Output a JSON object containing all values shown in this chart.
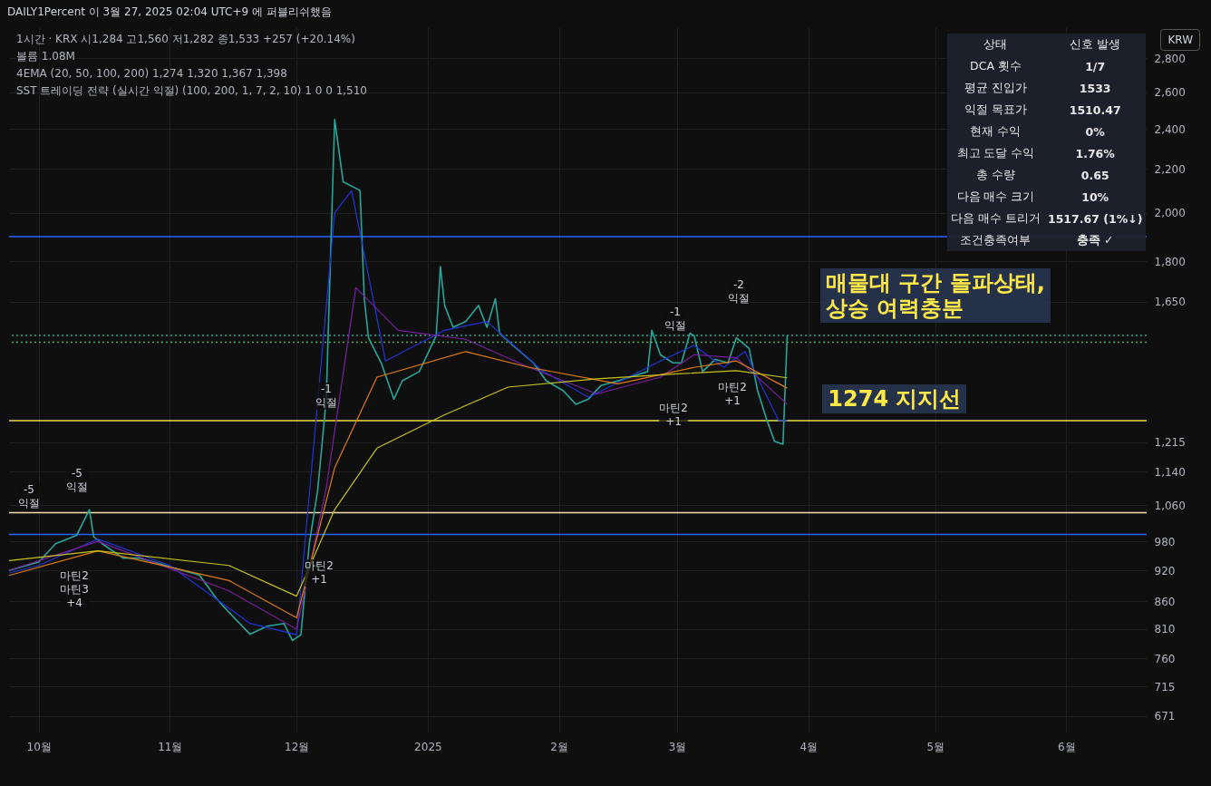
{
  "chart_data": {
    "type": "line",
    "title": "1시간 · KRX 시1,284 고1,560 저1,282 종1,533 +257 (+20.14%)",
    "subtitle": "볼륨 1.08M\n4EMA (20, 50, 100, 200) 1,274 1,320 1,367 1,398\nSST 트레이딩 전략 (실시간 익절) (100, 200, 1, 7, 2, 10) 1 0 0 1,510",
    "ylabel": "KRW",
    "xlim": [
      "2024-09-24",
      "2025-06-20"
    ],
    "xticks": [
      {
        "value": "2024-10-01",
        "label": "10월"
      },
      {
        "value": "2024-11-01",
        "label": "11월"
      },
      {
        "value": "2024-12-01",
        "label": "12월"
      },
      {
        "value": "2025-01-01",
        "label": "2025"
      },
      {
        "value": "2025-02-01",
        "label": "2월"
      },
      {
        "value": "2025-03-01",
        "label": "3월"
      },
      {
        "value": "2025-04-01",
        "label": "4월"
      },
      {
        "value": "2025-05-01",
        "label": "5월"
      },
      {
        "value": "2025-06-01",
        "label": "6월"
      }
    ],
    "log": true,
    "ylim": [
      647,
      2994
    ],
    "yticks": [
      671,
      715,
      760,
      810,
      860,
      920,
      980,
      {
        "value": 1060,
        "label": "1,060"
      },
      {
        "value": 1140,
        "label": "1,140"
      },
      {
        "value": 1215,
        "label": "1,215"
      },
      {
        "value": 1650,
        "label": "1,650"
      },
      {
        "value": 1800,
        "label": "1,800"
      },
      {
        "value": 2000,
        "label": "2,000"
      },
      {
        "value": 2200,
        "label": "2,200"
      },
      {
        "value": 2400,
        "label": "2,400"
      },
      {
        "value": 2600,
        "label": "2,600"
      },
      {
        "value": 2800,
        "label": "2,800"
      }
    ],
    "grid": true,
    "series": [
      {
        "color": "#26a69a",
        "x": [
          "2024-09-24",
          "2024-10-01",
          "2024-10-05",
          "2024-10-10",
          "2024-10-13",
          "2024-10-14",
          "2024-10-16",
          "2024-10-21",
          "2024-10-25",
          "2024-10-31",
          "2024-11-04",
          "2024-11-08",
          "2024-11-12",
          "2024-11-15",
          "2024-11-20",
          "2024-11-24",
          "2024-11-28",
          "2024-11-30",
          "2024-12-02",
          "2024-12-04",
          "2024-12-06",
          "2024-12-08",
          "2024-12-10",
          "2024-12-12",
          "2024-12-16",
          "2024-12-17",
          "2024-12-18",
          "2024-12-21",
          "2024-12-24",
          "2024-12-26",
          "2024-12-30",
          "2025-01-03",
          "2025-01-04",
          "2025-01-05",
          "2025-01-07",
          "2025-01-10",
          "2025-01-13",
          "2025-01-15",
          "2025-01-17",
          "2025-01-18",
          "2025-01-22",
          "2025-01-26",
          "2025-01-29",
          "2025-02-02",
          "2025-02-05",
          "2025-02-08",
          "2025-02-11",
          "2025-02-15",
          "2025-02-19",
          "2025-02-22",
          "2025-02-23",
          "2025-02-25",
          "2025-02-28",
          "2025-03-02",
          "2025-03-04",
          "2025-03-05",
          "2025-03-07",
          "2025-03-10",
          "2025-03-13",
          "2025-03-15",
          "2025-03-18",
          "2025-03-20",
          "2025-03-22",
          "2025-03-24",
          "2025-03-26",
          "2025-03-27"
        ],
        "values": [
          920,
          937,
          975,
          993,
          1050,
          990,
          975,
          945,
          945,
          930,
          920,
          911,
          866,
          840,
          801,
          815,
          820,
          790,
          800,
          975,
          1097,
          1335,
          2450,
          2140,
          2100,
          1660,
          1525,
          1444,
          1335,
          1389,
          1417,
          1532,
          1780,
          1636,
          1560,
          1580,
          1636,
          1560,
          1660,
          1540,
          1490,
          1444,
          1389,
          1360,
          1320,
          1335,
          1375,
          1389,
          1405,
          1417,
          1550,
          1470,
          1444,
          1444,
          1540,
          1532,
          1417,
          1455,
          1444,
          1525,
          1490,
          1360,
          1282,
          1218,
          1210,
          1533
        ]
      },
      {
        "color": "#2035d8",
        "x": [
          "2024-09-24",
          "2024-10-01",
          "2024-10-15",
          "2024-11-01",
          "2024-11-20",
          "2024-12-01",
          "2024-12-10",
          "2024-12-14",
          "2024-12-22",
          "2025-01-05",
          "2025-01-15",
          "2025-01-28",
          "2025-02-08",
          "2025-02-25",
          "2025-03-05",
          "2025-03-12",
          "2025-03-17",
          "2025-03-25",
          "2025-03-27"
        ],
        "values": [
          915,
          930,
          985,
          930,
          820,
          800,
          2000,
          2100,
          1450,
          1550,
          1580,
          1420,
          1340,
          1450,
          1500,
          1430,
          1480,
          1274,
          1274
        ]
      },
      {
        "color": "#7b1fa2",
        "x": [
          "2024-09-24",
          "2024-10-15",
          "2024-11-15",
          "2024-12-01",
          "2024-12-08",
          "2024-12-15",
          "2024-12-25",
          "2025-01-10",
          "2025-01-25",
          "2025-02-10",
          "2025-02-25",
          "2025-03-05",
          "2025-03-15",
          "2025-03-27"
        ],
        "values": [
          920,
          980,
          880,
          810,
          1100,
          1700,
          1550,
          1520,
          1430,
          1350,
          1400,
          1470,
          1460,
          1320
        ]
      },
      {
        "color": "#e07b12",
        "x": [
          "2024-09-24",
          "2024-10-15",
          "2024-11-15",
          "2024-12-01",
          "2024-12-10",
          "2024-12-20",
          "2025-01-10",
          "2025-01-25",
          "2025-02-15",
          "2025-03-05",
          "2025-03-15",
          "2025-03-27"
        ],
        "values": [
          910,
          960,
          900,
          830,
          1150,
          1400,
          1480,
          1430,
          1380,
          1430,
          1450,
          1367
        ]
      },
      {
        "color": "#c9c21a",
        "x": [
          "2024-09-24",
          "2024-10-15",
          "2024-11-15",
          "2024-12-01",
          "2024-12-10",
          "2024-12-20",
          "2025-01-05",
          "2025-01-20",
          "2025-02-10",
          "2025-03-01",
          "2025-03-15",
          "2025-03-27"
        ],
        "values": [
          940,
          960,
          930,
          870,
          1050,
          1200,
          1290,
          1370,
          1395,
          1410,
          1420,
          1398
        ]
      }
    ],
    "ref_lines": [
      {
        "axis": "y",
        "value": 1274,
        "label": "1274 지지선",
        "color": "#e8e04a"
      },
      {
        "axis": "y",
        "value": 1900,
        "color": "#2962ff"
      },
      {
        "axis": "y",
        "value": 995,
        "color": "#2962ff"
      },
      {
        "axis": "y",
        "value": 1043,
        "color": "#f5deb3"
      },
      {
        "axis": "y",
        "value": 1533,
        "color": "#26a69a",
        "line_style": "dotted"
      },
      {
        "axis": "y",
        "value": 1510,
        "color": "#4caf50",
        "line_style": "dotted"
      }
    ],
    "annotations": [
      "DAILY1Percent 이 3월 27, 2025 02:04 UTC+9 에 퍼블리쉬했음",
      "매물대 구간 돌파상태,\n상승 여력충분",
      "상태\t신호 발생",
      "DCA 횟수\t1/7",
      "평균 진입가\t1533",
      "익절 목표가\t1510.47",
      "현재 수익\t0%",
      "최고 도달 수익\t1.76%",
      "총 수량\t0.65",
      "다음 매수 크기\t10%",
      "다음 매수 트리거\t1517.67 (1%↓)",
      "조건충족여부\t충족 ✓",
      "-5\n익절",
      "-5\n익절",
      "마틴2\n마틴3\n+4",
      "-1\n익절",
      "마틴2\n+1",
      "-1\n익절",
      "마틴2\n+1",
      "-2\n익절",
      "마틴2\n+1"
    ]
  }
}
